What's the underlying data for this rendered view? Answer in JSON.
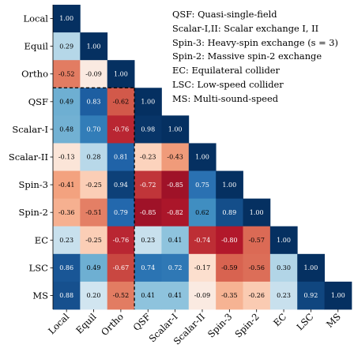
{
  "chart_data": {
    "type": "heatmap",
    "labels": [
      "Local",
      "Equil",
      "Ortho",
      "QSF",
      "Scalar-I",
      "Scalar-II",
      "Spin-3",
      "Spin-2",
      "EC",
      "LSC",
      "MS"
    ],
    "matrix": [
      [
        1.0
      ],
      [
        0.29,
        1.0
      ],
      [
        -0.52,
        -0.09,
        1.0
      ],
      [
        0.49,
        0.83,
        -0.62,
        1.0
      ],
      [
        0.48,
        0.7,
        -0.76,
        0.98,
        1.0
      ],
      [
        -0.13,
        0.28,
        0.81,
        -0.23,
        -0.43,
        1.0
      ],
      [
        -0.41,
        -0.25,
        0.94,
        -0.72,
        -0.85,
        0.75,
        1.0
      ],
      [
        -0.36,
        -0.51,
        0.79,
        -0.85,
        -0.82,
        0.62,
        0.89,
        1.0
      ],
      [
        0.23,
        -0.25,
        -0.76,
        0.23,
        0.41,
        -0.74,
        -0.8,
        -0.57,
        1.0
      ],
      [
        0.86,
        0.49,
        -0.67,
        0.74,
        0.72,
        -0.17,
        -0.59,
        -0.56,
        0.3,
        1.0
      ],
      [
        0.88,
        0.2,
        -0.52,
        0.41,
        0.41,
        -0.09,
        -0.35,
        -0.26,
        0.23,
        0.92,
        1.0
      ]
    ],
    "value_range": [
      -1,
      1
    ],
    "colormap": "RdBu",
    "color_positive": "#053061",
    "color_negative": "#67001f",
    "legend_lines": [
      "QSF: Quasi-single-field",
      "Scalar-I,II: Scalar exchange I, II",
      "Spin-3: Heavy-spin exchange (s = 3)",
      "Spin-2: Massive spin-2 exchange",
      "EC: Equilateral collider",
      "LSC: Low-speed collider",
      "MS: Multi-sound-speed"
    ],
    "legend_placement": "top-right"
  }
}
